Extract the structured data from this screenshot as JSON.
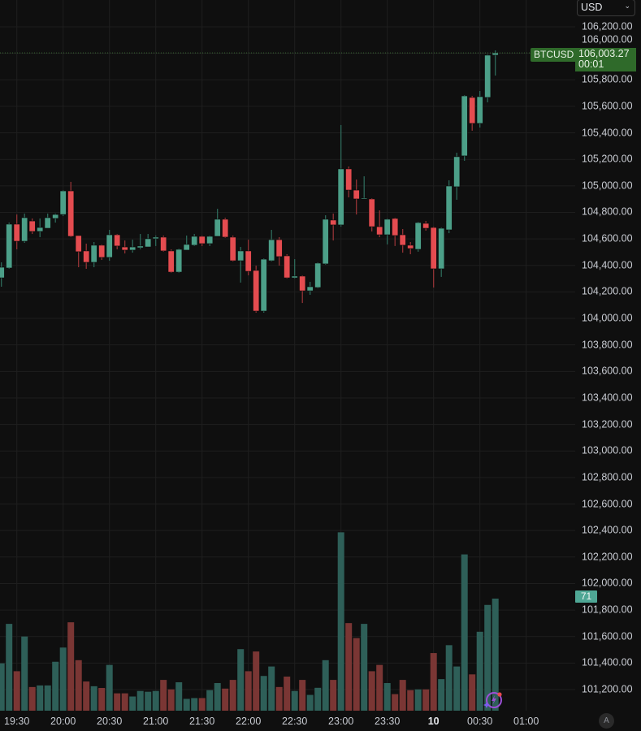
{
  "header": {
    "currency_select": "USD",
    "currency_chevron_icon": "chevron-down-icon"
  },
  "symbol_label": "BTCUSD",
  "last_price": "106,003.27",
  "countdown": "00:01",
  "volume_label": "71",
  "auto_scale_button": "A",
  "assistant_icon": "lightning-sparkle-icon",
  "colors": {
    "background": "#0f0f0f",
    "up": "#4c9f88",
    "down": "#e44c50",
    "volume_up": "#2e5f58",
    "volume_down": "#7a3634",
    "last_price_bg": "#2f6a2a",
    "grid": "#1e1e1e"
  },
  "chart_data": {
    "type": "candlestick",
    "title": "",
    "interval_minutes": 5,
    "grid": true,
    "ylim": [
      100970,
      106400
    ],
    "price_ticks": [
      "106,200.00",
      "106,000.00",
      "105,800.00",
      "105,600.00",
      "105,400.00",
      "105,200.00",
      "105,000.00",
      "104,800.00",
      "104,600.00",
      "104,400.00",
      "104,200.00",
      "104,000.00",
      "103,800.00",
      "103,600.00",
      "103,400.00",
      "103,200.00",
      "103,000.00",
      "102,800.00",
      "102,600.00",
      "102,400.00",
      "102,200.00",
      "102,000.00",
      "101,800.00",
      "101,600.00",
      "101,400.00",
      "101,200.00"
    ],
    "time_ticks": [
      {
        "label": "19:30",
        "time": "19:30",
        "bold": false
      },
      {
        "label": "20:00",
        "time": "20:00",
        "bold": false
      },
      {
        "label": "20:30",
        "time": "20:30",
        "bold": false
      },
      {
        "label": "21:00",
        "time": "21:00",
        "bold": false
      },
      {
        "label": "21:30",
        "time": "21:30",
        "bold": false
      },
      {
        "label": "22:00",
        "time": "22:00",
        "bold": false
      },
      {
        "label": "22:30",
        "time": "22:30",
        "bold": false
      },
      {
        "label": "23:00",
        "time": "23:00",
        "bold": false
      },
      {
        "label": "23:30",
        "time": "23:30",
        "bold": false
      },
      {
        "label": "10",
        "time": "00:00",
        "bold": true
      },
      {
        "label": "00:30",
        "time": "00:30",
        "bold": false
      },
      {
        "label": "01:00",
        "time": "01:00",
        "bold": false
      }
    ],
    "candle_fields": [
      "time",
      "open",
      "high",
      "low",
      "close",
      "volume"
    ],
    "candles": [
      [
        "19:20",
        104306,
        104423,
        104239,
        104386,
        30
      ],
      [
        "19:25",
        104380,
        104723,
        104374,
        104711,
        55
      ],
      [
        "19:30",
        104711,
        104784,
        104521,
        104582,
        25
      ],
      [
        "19:35",
        104582,
        104791,
        104570,
        104760,
        47
      ],
      [
        "19:40",
        104735,
        104754,
        104637,
        104656,
        15
      ],
      [
        "19:45",
        104656,
        104754,
        104613,
        104686,
        16
      ],
      [
        "19:50",
        104680,
        104791,
        104680,
        104760,
        16
      ],
      [
        "19:55",
        104754,
        104791,
        104723,
        104784,
        31
      ],
      [
        "20:00",
        104784,
        104968,
        104772,
        104962,
        40
      ],
      [
        "20:05",
        104962,
        105030,
        104613,
        104619,
        56
      ],
      [
        "20:10",
        104625,
        104625,
        104386,
        104503,
        32
      ],
      [
        "20:15",
        104509,
        104564,
        104374,
        104423,
        18.5
      ],
      [
        "20:20",
        104423,
        104576,
        104386,
        104552,
        15.5
      ],
      [
        "20:25",
        104552,
        104558,
        104441,
        104460,
        14.4
      ],
      [
        "20:30",
        104460,
        104668,
        104435,
        104631,
        29
      ],
      [
        "20:35",
        104631,
        104637,
        104521,
        104546,
        11
      ],
      [
        "20:40",
        104539,
        104588,
        104490,
        104515,
        11
      ],
      [
        "20:45",
        104515,
        104594,
        104496,
        104539,
        9
      ],
      [
        "20:50",
        104533,
        104637,
        104521,
        104546,
        12.5
      ],
      [
        "20:55",
        104539,
        104637,
        104539,
        104601,
        12
      ],
      [
        "21:00",
        104601,
        104625,
        104546,
        104613,
        12.5
      ],
      [
        "21:05",
        104613,
        104625,
        104503,
        104509,
        19.5
      ],
      [
        "21:10",
        104509,
        104521,
        104343,
        104349,
        13.5
      ],
      [
        "21:15",
        104349,
        104527,
        104343,
        104521,
        18
      ],
      [
        "21:20",
        104515,
        104625,
        104515,
        104558,
        7.5
      ],
      [
        "21:25",
        104552,
        104637,
        104546,
        104619,
        8
      ],
      [
        "21:30",
        104619,
        104625,
        104546,
        104564,
        8
      ],
      [
        "21:35",
        104564,
        104625,
        104546,
        104619,
        13
      ],
      [
        "21:40",
        104619,
        104827,
        104619,
        104748,
        17.5
      ],
      [
        "21:45",
        104748,
        104760,
        104607,
        104613,
        14
      ],
      [
        "21:50",
        104613,
        104625,
        104429,
        104435,
        19.5
      ],
      [
        "21:55",
        104435,
        104539,
        104270,
        104509,
        39
      ],
      [
        "22:00",
        104509,
        104594,
        104325,
        104355,
        25
      ],
      [
        "22:05",
        104362,
        104398,
        104043,
        104055,
        37.5
      ],
      [
        "22:10",
        104055,
        104453,
        104043,
        104447,
        22
      ],
      [
        "22:15",
        104435,
        104668,
        104429,
        104594,
        28
      ],
      [
        "22:20",
        104594,
        104613,
        104398,
        104466,
        15
      ],
      [
        "22:25",
        104472,
        104484,
        104300,
        104306,
        21.6
      ],
      [
        "22:30",
        104306,
        104447,
        104300,
        104319,
        12.5
      ],
      [
        "22:35",
        104319,
        104325,
        104116,
        104208,
        19.5
      ],
      [
        "22:40",
        104208,
        104276,
        104178,
        104239,
        10
      ],
      [
        "22:45",
        104233,
        104423,
        104227,
        104417,
        14.5
      ],
      [
        "22:50",
        104411,
        104778,
        104405,
        104748,
        32
      ],
      [
        "22:55",
        104742,
        104791,
        104588,
        104705,
        19.5
      ],
      [
        "23:00",
        104705,
        105459,
        104693,
        105128,
        113
      ],
      [
        "23:05",
        105128,
        105146,
        104913,
        104968,
        55.5
      ],
      [
        "23:10",
        104968,
        105048,
        104784,
        104901,
        46
      ],
      [
        "23:15",
        104901,
        105072,
        104901,
        104907,
        55
      ],
      [
        "23:20",
        104901,
        104907,
        104656,
        104692,
        25
      ],
      [
        "23:25",
        104692,
        104815,
        104613,
        104631,
        29
      ],
      [
        "23:30",
        104631,
        104754,
        104558,
        104748,
        17.5
      ],
      [
        "23:35",
        104754,
        104760,
        104546,
        104625,
        10.5
      ],
      [
        "23:40",
        104631,
        104674,
        104496,
        104552,
        19.5
      ],
      [
        "23:45",
        104552,
        104576,
        104484,
        104527,
        13
      ],
      [
        "23:50",
        104521,
        104729,
        104503,
        104723,
        13.5
      ],
      [
        "23:55",
        104717,
        104735,
        104662,
        104680,
        13.5
      ],
      [
        "00:00",
        104686,
        104692,
        104233,
        104374,
        36.5
      ],
      [
        "00:05",
        104374,
        104686,
        104313,
        104680,
        20
      ],
      [
        "00:10",
        104668,
        105042,
        104643,
        104999,
        41.5
      ],
      [
        "00:15",
        104993,
        105250,
        104895,
        105220,
        28
      ],
      [
        "00:20",
        105226,
        105685,
        105189,
        105679,
        99
      ],
      [
        "00:25",
        105667,
        105679,
        105416,
        105471,
        23
      ],
      [
        "00:30",
        105471,
        105716,
        105440,
        105673,
        50
      ],
      [
        "00:35",
        105667,
        105992,
        105630,
        105986,
        67
      ],
      [
        "00:40",
        105986,
        106022,
        105832,
        106003.27,
        71
      ]
    ]
  }
}
